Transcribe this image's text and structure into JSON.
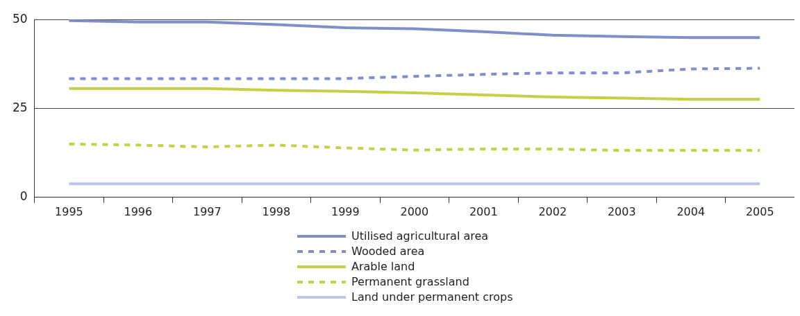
{
  "chart_data": {
    "type": "line",
    "categories": [
      "1995",
      "1996",
      "1997",
      "1998",
      "1999",
      "2000",
      "2001",
      "2002",
      "2003",
      "2004",
      "2005"
    ],
    "series": [
      {
        "name": "Utilised agricultural area",
        "color": "#7f8fc8",
        "line_style": "solid",
        "values": [
          49.7,
          49.3,
          49.3,
          48.6,
          47.7,
          47.4,
          46.6,
          45.6,
          45.2,
          44.9,
          44.9
        ]
      },
      {
        "name": "Wooded area",
        "color": "#7f8fc8",
        "line_style": "dashed",
        "values": [
          33.4,
          33.4,
          33.4,
          33.4,
          33.4,
          34.0,
          34.6,
          35.0,
          35.0,
          36.1,
          36.3
        ]
      },
      {
        "name": "Arable land",
        "color": "#c4d048",
        "line_style": "solid",
        "values": [
          30.6,
          30.6,
          30.6,
          30.1,
          29.8,
          29.4,
          28.8,
          28.2,
          27.9,
          27.6,
          27.6
        ]
      },
      {
        "name": "Permanent grassland",
        "color": "#c4d048",
        "line_style": "dashed",
        "values": [
          15.0,
          14.7,
          14.2,
          14.7,
          13.9,
          13.3,
          13.6,
          13.6,
          13.2,
          13.2,
          13.2
        ]
      },
      {
        "name": "Land under permanent crops",
        "color": "#bcc6ea",
        "line_style": "solid",
        "values": [
          3.8,
          3.8,
          3.8,
          3.8,
          3.8,
          3.8,
          3.8,
          3.8,
          3.8,
          3.8,
          3.8
        ]
      }
    ],
    "ylim": [
      0,
      50
    ],
    "yticks": [
      0,
      25,
      50
    ],
    "grid": "y",
    "legend": "bottom",
    "marker": "none"
  }
}
